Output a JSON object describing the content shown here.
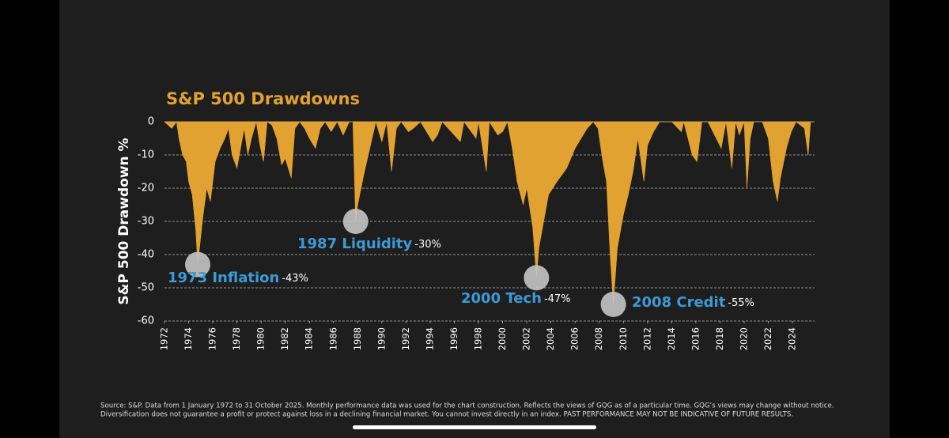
{
  "chart_data": {
    "type": "area",
    "title": "S&P 500 Drawdowns",
    "y_label": "S&P 500 Drawdown %",
    "color": "#e2a232",
    "grid": true,
    "xlim": [
      1972,
      2025.83
    ],
    "ylim": [
      -60,
      0
    ],
    "yticks": [
      0,
      -10,
      -20,
      -30,
      -40,
      -50,
      -60
    ],
    "xticks": [
      1972,
      1974,
      1976,
      1978,
      1980,
      1982,
      1984,
      1986,
      1988,
      1990,
      1992,
      1994,
      1996,
      1998,
      2000,
      2002,
      2004,
      2006,
      2008,
      2010,
      2012,
      2014,
      2016,
      2018,
      2020,
      2022,
      2024
    ],
    "x": [
      1972.0,
      1972.3,
      1972.6,
      1973.0,
      1973.2,
      1973.5,
      1973.8,
      1974.0,
      1974.3,
      1974.6,
      1974.75,
      1974.9,
      1975.2,
      1975.5,
      1975.8,
      1976.2,
      1976.6,
      1977.0,
      1977.3,
      1977.6,
      1978.0,
      1978.3,
      1978.6,
      1978.9,
      1979.2,
      1979.6,
      1979.9,
      1980.2,
      1980.5,
      1980.9,
      1981.3,
      1981.7,
      1982.0,
      1982.5,
      1982.8,
      1983.2,
      1983.6,
      1984.0,
      1984.5,
      1984.9,
      1985.3,
      1985.8,
      1986.3,
      1986.8,
      1987.3,
      1987.6,
      1987.83,
      1988.0,
      1988.5,
      1989.0,
      1989.5,
      1990.0,
      1990.4,
      1990.8,
      1991.2,
      1991.6,
      1992.2,
      1992.6,
      1993.2,
      1994.2,
      1994.6,
      1995.0,
      1996.5,
      1996.8,
      1997.8,
      1998.0,
      1998.65,
      1998.9,
      1999.6,
      2000.0,
      2000.4,
      2000.8,
      2001.2,
      2001.7,
      2002.0,
      2002.5,
      2002.8,
      2003.0,
      2003.4,
      2003.8,
      2004.5,
      2005.3,
      2006.0,
      2006.5,
      2007.0,
      2007.5,
      2007.9,
      2008.3,
      2008.6,
      2008.9,
      2009.17,
      2009.5,
      2010.0,
      2010.4,
      2010.8,
      2011.2,
      2011.7,
      2012.0,
      2012.5,
      2013.0,
      2014.0,
      2014.8,
      2015.0,
      2015.7,
      2016.1,
      2016.5,
      2017.0,
      2018.1,
      2018.5,
      2018.98,
      2019.3,
      2019.6,
      2020.0,
      2020.23,
      2020.5,
      2020.8,
      2021.5,
      2022.0,
      2022.4,
      2022.75,
      2023.0,
      2023.5,
      2023.9,
      2024.3,
      2025.0,
      2025.3,
      2025.5,
      2025.83
    ],
    "values": [
      0,
      -1,
      -2,
      0,
      -5,
      -10,
      -12,
      -18,
      -22,
      -33,
      -43,
      -38,
      -28,
      -20,
      -24,
      -12,
      -8,
      -5,
      -2,
      -10,
      -14,
      -8,
      -2,
      -10,
      -5,
      0,
      -7,
      -12,
      0,
      -1,
      -5,
      -13,
      -11,
      -17,
      -2,
      0,
      -2,
      -5,
      -8,
      -2,
      0,
      -3,
      0,
      -4,
      0,
      0,
      -30,
      -25,
      -16,
      -8,
      0,
      -6,
      0,
      -15,
      -2,
      0,
      -3,
      -2,
      0,
      -6,
      -4,
      0,
      -6,
      0,
      -5,
      0,
      -15,
      0,
      -4,
      -3,
      0,
      -8,
      -18,
      -25,
      -20,
      -32,
      -47,
      -38,
      -30,
      -22,
      -18,
      -14,
      -8,
      -5,
      -2,
      0,
      -2,
      -12,
      -18,
      -40,
      -55,
      -38,
      -28,
      -22,
      -15,
      -5,
      -18,
      -7,
      -3,
      0,
      0,
      -3,
      0,
      -10,
      -12,
      0,
      0,
      -8,
      0,
      -14,
      0,
      -4,
      0,
      -20,
      -5,
      0,
      0,
      -5,
      -18,
      -24,
      -17,
      -8,
      -3,
      0,
      -2,
      -10,
      0,
      0
    ],
    "annotations": [
      {
        "label": "1973 Inflation",
        "value_label": "-43%",
        "value": -43,
        "x": 1974.75
      },
      {
        "label": "1987 Liquidity",
        "value_label": "-30%",
        "value": -30,
        "x": 1987.83
      },
      {
        "label": "2000 Tech",
        "value_label": "-47%",
        "value": -47,
        "x": 2002.8
      },
      {
        "label": "2008 Credit",
        "value_label": "-55%",
        "value": -55,
        "x": 2009.17
      }
    ],
    "footnote": [
      "Source: S&P. Data from 1 January 1972 to 31 October 2025. Monthly performance data was used for the chart construction. Reflects the views of GQG as of a particular time. GQG’s views may change without notice.",
      "Diversification does not guarantee a profit or protect against loss in a declining financial market. You cannot invest directly in an index. PAST PERFORMANCE MAY NOT BE INDICATIVE OF FUTURE RESULTS."
    ]
  }
}
